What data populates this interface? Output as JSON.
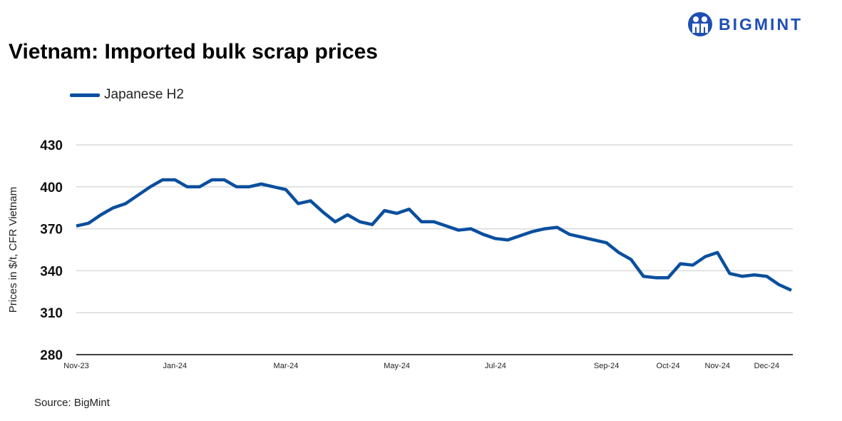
{
  "brand": {
    "name": "BIGMINT",
    "color": "#1f4fb4"
  },
  "source": "Source: BigMint",
  "chart_data": {
    "type": "line",
    "title": "Vietnam: Imported bulk scrap prices",
    "ylabel": "Prices in $/t, CFR Vietnam",
    "xlabel": "",
    "ylim": [
      280,
      430
    ],
    "y_ticks": [
      280,
      310,
      340,
      370,
      400,
      430
    ],
    "grid": true,
    "legend_placement": "top-left",
    "x_ticks": [
      {
        "label": "Nov-23",
        "index": 0
      },
      {
        "label": "Jan-24",
        "index": 8
      },
      {
        "label": "Mar-24",
        "index": 17
      },
      {
        "label": "May-24",
        "index": 26
      },
      {
        "label": "Jul-24",
        "index": 34
      },
      {
        "label": "Sep-24",
        "index": 43
      },
      {
        "label": "Oct-24",
        "index": 48
      },
      {
        "label": "Nov-24",
        "index": 52
      },
      {
        "label": "Dec-24",
        "index": 56
      }
    ],
    "series": [
      {
        "name": "Japanese H2",
        "color": "#0a4f9e",
        "values": [
          372,
          374,
          380,
          385,
          388,
          394,
          400,
          405,
          405,
          400,
          400,
          405,
          405,
          400,
          400,
          402,
          400,
          398,
          388,
          390,
          382,
          375,
          380,
          375,
          373,
          383,
          381,
          384,
          375,
          375,
          372,
          369,
          370,
          366,
          363,
          362,
          365,
          368,
          370,
          371,
          366,
          364,
          362,
          360,
          353,
          348,
          336,
          335,
          335,
          345,
          344,
          350,
          353,
          338,
          336,
          337,
          336,
          330,
          326
        ]
      }
    ]
  }
}
